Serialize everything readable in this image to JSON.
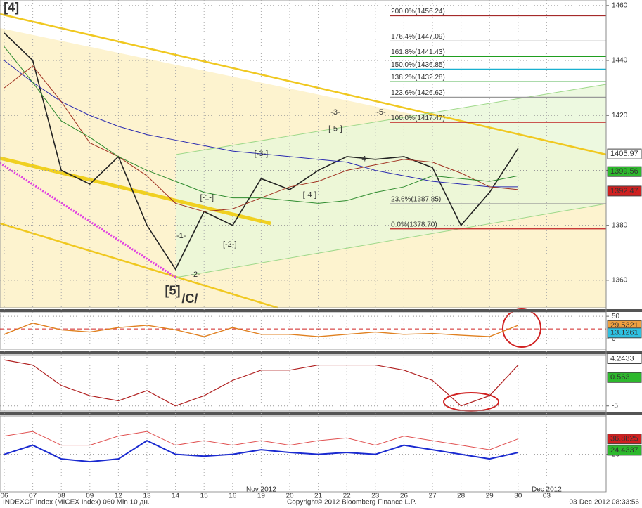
{
  "chart_data": [
    {
      "type": "line",
      "categories": [
        "06",
        "07",
        "08",
        "09",
        "12",
        "13",
        "14",
        "15",
        "16",
        "19",
        "20",
        "21",
        "22",
        "23",
        "26",
        "27",
        "28",
        "29",
        "30",
        "03"
      ],
      "month_labels": [
        {
          "text": "Nov 2012",
          "x": 9
        },
        {
          "text": "Dec 2012",
          "x": 19
        }
      ],
      "ylim": [
        1350,
        1462
      ],
      "yticks": [
        1360,
        1380,
        1400,
        1420,
        1440,
        1460
      ],
      "grid": true,
      "series": [
        {
          "color": "#222222",
          "width": 1.6,
          "values": [
            1450,
            1440,
            1400,
            1395,
            1405,
            1380,
            1364,
            1385,
            1380,
            1397,
            1393,
            1400,
            1405,
            1404,
            1405,
            1401,
            1380,
            1392,
            1408,
            null
          ]
        },
        {
          "color": "#2a2ab0",
          "width": 1,
          "values": [
            1440,
            1432,
            1425,
            1420,
            1416,
            1413,
            1411,
            1409,
            1407,
            1406,
            1405,
            1404,
            1403,
            1400,
            1398,
            1396,
            1395,
            1394,
            1394,
            null
          ]
        },
        {
          "color": "#a03020",
          "width": 1,
          "values": [
            1430,
            1438,
            1425,
            1410,
            1405,
            1398,
            1388,
            1385,
            1386,
            1390,
            1394,
            1396,
            1400,
            1402,
            1404,
            1403,
            1399,
            1394,
            1393,
            null
          ]
        },
        {
          "color": "#2e8b2e",
          "width": 1,
          "values": [
            1445,
            1432,
            1418,
            1412,
            1405,
            1400,
            1396,
            1392,
            1390,
            1390,
            1389,
            1388,
            1389,
            1392,
            1394,
            1398,
            1397,
            1396,
            1398,
            null
          ]
        }
      ],
      "fib_levels": [
        {
          "label": "200.0%(1456.24)",
          "value": 1456.24,
          "color": "#a52a2a"
        },
        {
          "label": "176.4%(1447.09)",
          "value": 1447.09,
          "color": "#999999"
        },
        {
          "label": "161.8%(1441.43)",
          "value": 1441.43,
          "color": "#1f9e1f"
        },
        {
          "label": "150.0%(1436.85)",
          "value": 1436.85,
          "color": "#18b0d0"
        },
        {
          "label": "138.2%(1432.28)",
          "value": 1432.28,
          "color": "#1f9e1f"
        },
        {
          "label": "123.6%(1426.62)",
          "value": 1426.62,
          "color": "#999999"
        },
        {
          "label": "100.0%(1417.47)",
          "value": 1417.47,
          "color": "#c02020"
        },
        {
          "label": "23.6%(1387.85)",
          "value": 1387.85,
          "color": "#999999"
        },
        {
          "label": "0.0%(1378.70)",
          "value": 1378.7,
          "color": "#c02020"
        }
      ],
      "fib_start": 13.5,
      "right_labels": [
        {
          "value": 1405.97,
          "color": "#ffffff",
          "text_color": "#000000"
        },
        {
          "value": 1399.56,
          "color": "#2db82d",
          "text_color": "#000000"
        },
        {
          "value": 1392.47,
          "color": "#d02020",
          "text_color": "#ffffff"
        }
      ],
      "annotations": [
        {
          "text": "[4]",
          "x": 0.25,
          "y": 1459,
          "color": "#c00000"
        },
        {
          "text": "[5]",
          "x": 5.9,
          "y": 1356,
          "color": "#c00000"
        },
        {
          "text": "/C/",
          "x": 6.5,
          "y": 1353,
          "color": "#e020c0"
        },
        {
          "text": "-1-",
          "x": 6.2,
          "y": 1376,
          "color": "#2e8b2e"
        },
        {
          "text": "-2-",
          "x": 6.7,
          "y": 1362,
          "color": "#2e8b2e"
        },
        {
          "text": "-3-",
          "x": 11.6,
          "y": 1421,
          "color": "#2e8b2e"
        },
        {
          "text": "-4-",
          "x": 12.6,
          "y": 1404,
          "color": "#2e8b2e"
        },
        {
          "text": "-5-",
          "x": 13.2,
          "y": 1421,
          "color": "#2e8b2e"
        },
        {
          "text": "[-1-]",
          "x": 7.1,
          "y": 1390,
          "color": "#777777"
        },
        {
          "text": "[-2-]",
          "x": 7.9,
          "y": 1373,
          "color": "#777777"
        },
        {
          "text": "[-3-]",
          "x": 9.0,
          "y": 1406,
          "color": "#777777"
        },
        {
          "text": "[-4-]",
          "x": 10.7,
          "y": 1391,
          "color": "#777777"
        },
        {
          "text": "[-5-]",
          "x": 11.6,
          "y": 1415,
          "color": "#777777"
        }
      ]
    },
    {
      "type": "line",
      "ylim": [
        -23,
        58
      ],
      "yticks": [
        0,
        50
      ],
      "reference": 22,
      "series": [
        {
          "color": "#e08020",
          "width": 1.4,
          "values": [
            10,
            35,
            20,
            15,
            25,
            30,
            20,
            5,
            25,
            10,
            10,
            5,
            10,
            15,
            10,
            12,
            8,
            5,
            30,
            null
          ]
        }
      ],
      "right_labels": [
        {
          "value": 29.5321,
          "color": "#f0a040",
          "text_color": "#000000"
        },
        {
          "value": 13.1261,
          "color": "#30c0e0",
          "text_color": "#000000"
        }
      ]
    },
    {
      "type": "line",
      "ylim": [
        -6,
        5
      ],
      "yticks": [
        -5
      ],
      "series": [
        {
          "color": "#b02020",
          "width": 1.2,
          "values": [
            4,
            3,
            -1,
            -3,
            -4,
            -2,
            -5,
            -3,
            0,
            2,
            2,
            3,
            3,
            3,
            2,
            0,
            -5,
            -3,
            3,
            null
          ]
        }
      ],
      "right_labels": [
        {
          "value": 4.2433,
          "color": "#ffffff",
          "text_color": "#000000"
        },
        {
          "value": 0.563,
          "color": "#2db82d",
          "text_color": "#000000"
        }
      ]
    },
    {
      "type": "line",
      "ylim": [
        -21,
        62
      ],
      "yticks": [
        20
      ],
      "series": [
        {
          "color": "#e05050",
          "width": 1,
          "values": [
            40,
            45,
            30,
            30,
            40,
            45,
            30,
            35,
            30,
            35,
            30,
            35,
            38,
            30,
            40,
            35,
            30,
            25,
            37,
            null
          ]
        },
        {
          "color": "#1a2ad0",
          "width": 2,
          "values": [
            20,
            30,
            15,
            12,
            15,
            35,
            20,
            18,
            20,
            25,
            22,
            20,
            22,
            20,
            30,
            25,
            20,
            15,
            22,
            null
          ]
        }
      ],
      "right_labels": [
        {
          "value": 36.8825,
          "color": "#d02020",
          "text_color": "#ffffff"
        },
        {
          "value": 24.4337,
          "color": "#2db82d",
          "text_color": "#000000"
        }
      ]
    }
  ],
  "footer": {
    "left": "INDEXCF Index (MICEX Index) 060 Min 10 дн.",
    "center": "Copyright© 2012 Bloomberg Finance L.P.",
    "right": "03-Dec-2012 08:33:56"
  }
}
